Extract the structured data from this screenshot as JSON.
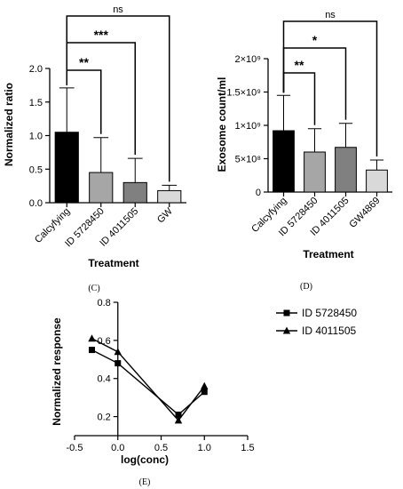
{
  "panel_labels": [
    "(C)",
    "(D)",
    "(E)"
  ],
  "chart_data": [
    {
      "type": "bar",
      "categories": [
        "Calcyfying",
        "ID 5728450",
        "ID 4011505",
        "GW"
      ],
      "values": [
        1.05,
        0.45,
        0.3,
        0.18
      ],
      "errors": [
        0.66,
        0.52,
        0.36,
        0.08
      ],
      "colors": [
        "#000000",
        "#a6a6a6",
        "#808080",
        "#d9d9d9"
      ],
      "ylabel": "Normalized ratio",
      "xlabel": "Treatment",
      "ylim": [
        0,
        2.0
      ],
      "yticks": [
        "0.0",
        "0.5",
        "1.0",
        "1.5",
        "2.0"
      ],
      "yticks_values": [
        0,
        0.5,
        1.0,
        1.5,
        2.0
      ],
      "significance": [
        {
          "from": 0,
          "to": 1,
          "label": "**"
        },
        {
          "from": 0,
          "to": 2,
          "label": "***"
        },
        {
          "from": 0,
          "to": 3,
          "label": "ns"
        }
      ]
    },
    {
      "type": "bar",
      "categories": [
        "Calcyfying",
        "ID 5728450",
        "ID 4011505",
        "GW4869"
      ],
      "values": [
        920000000,
        600000000,
        670000000,
        330000000
      ],
      "errors": [
        530000000,
        350000000,
        360000000,
        150000000
      ],
      "colors": [
        "#000000",
        "#a6a6a6",
        "#808080",
        "#d9d9d9"
      ],
      "ylabel": "Exosome count/ml",
      "xlabel": "Treatment",
      "ylim": [
        0,
        2000000000
      ],
      "yticks": [
        "0",
        "5×10⁸",
        "1×10⁹",
        "1.5×10⁹",
        "2×10⁹"
      ],
      "yticks_values": [
        0,
        500000000,
        1000000000,
        1500000000,
        2000000000
      ],
      "significance": [
        {
          "from": 0,
          "to": 1,
          "label": "**"
        },
        {
          "from": 0,
          "to": 2,
          "label": "*"
        },
        {
          "from": 0,
          "to": 3,
          "label": "ns"
        }
      ]
    },
    {
      "type": "line",
      "xlabel": "log(conc)",
      "ylabel": "Normalized response",
      "xlim": [
        -0.5,
        1.5
      ],
      "ylim": [
        0.1,
        0.8
      ],
      "xticks": [
        "-0.5",
        "0.0",
        "0.5",
        "1.0",
        "1.5"
      ],
      "xticks_values": [
        -0.5,
        0,
        0.5,
        1.0,
        1.5
      ],
      "yticks": [
        "0.2",
        "0.4",
        "0.6",
        "0.8"
      ],
      "yticks_values": [
        0.2,
        0.4,
        0.6,
        0.8
      ],
      "series": [
        {
          "name": "ID 5728450",
          "marker": "square",
          "x": [
            -0.3,
            0.0,
            0.7,
            1.0
          ],
          "y": [
            0.55,
            0.48,
            0.21,
            0.33
          ]
        },
        {
          "name": "ID 4011505",
          "marker": "triangle",
          "x": [
            -0.3,
            0.0,
            0.7,
            1.0
          ],
          "y": [
            0.61,
            0.54,
            0.18,
            0.36
          ]
        }
      ]
    }
  ]
}
